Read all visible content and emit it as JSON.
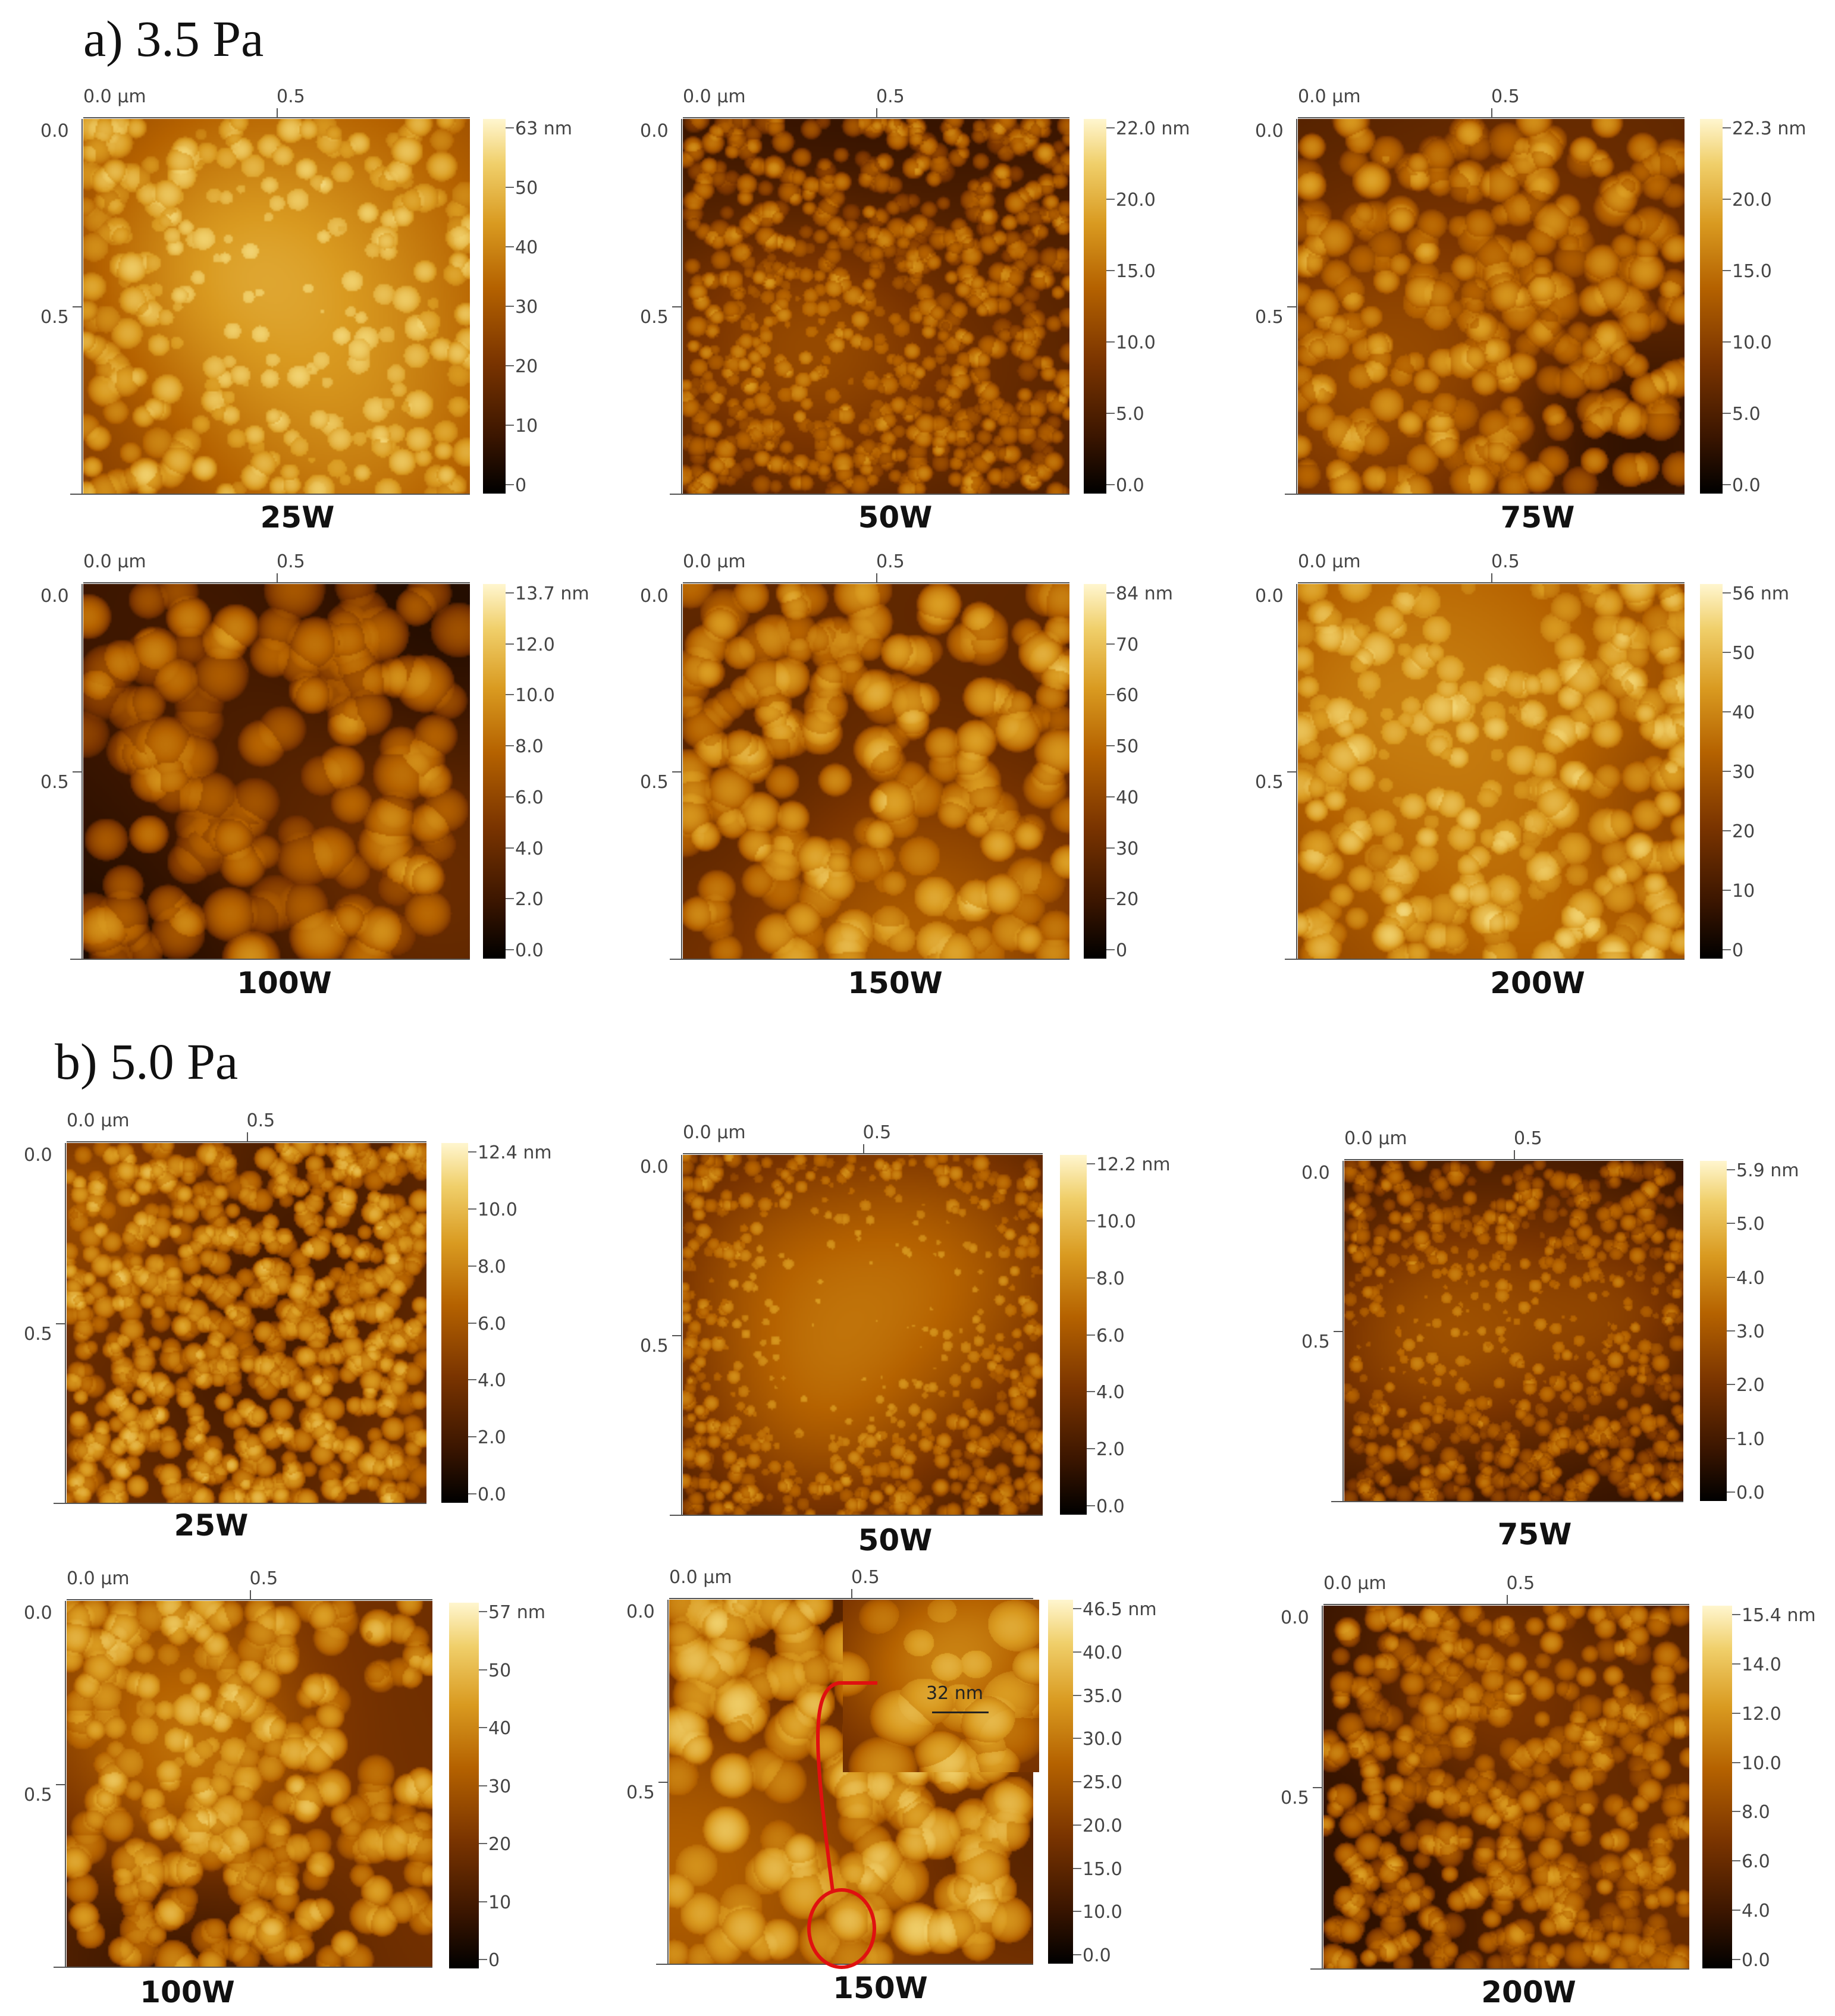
{
  "figure": {
    "colormap": [
      "#000000",
      "#3a1500",
      "#7a3400",
      "#b56200",
      "#d99a20",
      "#f0cf6a",
      "#fff6cf"
    ],
    "sections": [
      {
        "title": "a) 3.5 Pa",
        "panels": [
          {
            "caption": "25W",
            "x_ticks": [
              "0.0 µm",
              "0.5"
            ],
            "y_ticks": [
              "0.0",
              "0.5"
            ],
            "scale_labels": [
              "63 nm",
              "50",
              "40",
              "30",
              "20",
              "10",
              "0"
            ],
            "brightness": 0.62,
            "grain": 18
          },
          {
            "caption": "50W",
            "x_ticks": [
              "0.0 µm",
              "0.5"
            ],
            "y_ticks": [
              "0.0",
              "0.5"
            ],
            "scale_labels": [
              "22.0 nm",
              "20.0",
              "15.0",
              "10.0",
              "5.0",
              "0.0"
            ],
            "brightness": 0.42,
            "grain": 12
          },
          {
            "caption": "75W",
            "x_ticks": [
              "0.0 µm",
              "0.5"
            ],
            "y_ticks": [
              "0.0",
              "0.5"
            ],
            "scale_labels": [
              "22.3 nm",
              "20.0",
              "15.0",
              "10.0",
              "5.0",
              "0.0"
            ],
            "brightness": 0.5,
            "grain": 20
          },
          {
            "caption": "100W",
            "x_ticks": [
              "0.0 µm",
              "0.5"
            ],
            "y_ticks": [
              "0.0",
              "0.5"
            ],
            "scale_labels": [
              "13.7 nm",
              "12.0",
              "10.0",
              "8.0",
              "6.0",
              "4.0",
              "2.0",
              "0.0"
            ],
            "brightness": 0.45,
            "grain": 30
          },
          {
            "caption": "150W",
            "x_ticks": [
              "0.0 µm",
              "0.5"
            ],
            "y_ticks": [
              "0.0",
              "0.5"
            ],
            "scale_labels": [
              "84 nm",
              "70",
              "60",
              "50",
              "40",
              "30",
              "20",
              "0"
            ],
            "brightness": 0.55,
            "grain": 24
          },
          {
            "caption": "200W",
            "x_ticks": [
              "0.0 µm",
              "0.5"
            ],
            "y_ticks": [
              "0.0",
              "0.5"
            ],
            "scale_labels": [
              "56 nm",
              "50",
              "40",
              "30",
              "20",
              "10",
              "0"
            ],
            "brightness": 0.62,
            "grain": 20
          }
        ]
      },
      {
        "title": "b) 5.0 Pa",
        "panels": [
          {
            "caption": "25W",
            "x_ticks": [
              "0.0 µm",
              "0.5"
            ],
            "y_ticks": [
              "0.0",
              "0.5"
            ],
            "scale_labels": [
              "12.4 nm",
              "10.0",
              "8.0",
              "6.0",
              "4.0",
              "2.0",
              "0.0"
            ],
            "brightness": 0.55,
            "grain": 13
          },
          {
            "caption": "50W",
            "x_ticks": [
              "0.0 µm",
              "0.5"
            ],
            "y_ticks": [
              "0.0",
              "0.5"
            ],
            "scale_labels": [
              "12.2 nm",
              "10.0",
              "8.0",
              "6.0",
              "4.0",
              "2.0",
              "0.0"
            ],
            "brightness": 0.42,
            "grain": 11
          },
          {
            "caption": "75W",
            "x_ticks": [
              "0.0 µm",
              "0.5"
            ],
            "y_ticks": [
              "0.0",
              "0.5"
            ],
            "scale_labels": [
              "5.9 nm",
              "5.0",
              "4.0",
              "3.0",
              "2.0",
              "1.0",
              "0.0"
            ],
            "brightness": 0.38,
            "grain": 12
          },
          {
            "caption": "100W",
            "x_ticks": [
              "0.0 µm",
              "0.5"
            ],
            "y_ticks": [
              "0.0",
              "0.5"
            ],
            "scale_labels": [
              "57 nm",
              "50",
              "40",
              "30",
              "20",
              "10",
              "0"
            ],
            "brightness": 0.58,
            "grain": 20
          },
          {
            "caption": "150W",
            "x_ticks": [
              "0.0 µm",
              "0.5"
            ],
            "y_ticks": [
              "0.0",
              "0.5"
            ],
            "scale_labels": [
              "46.5 nm",
              "40.0",
              "35.0",
              "30.0",
              "25.0",
              "20.0",
              "15.0",
              "10.0",
              "0.0"
            ],
            "brightness": 0.62,
            "grain": 28,
            "inset_scale": "32 nm"
          },
          {
            "caption": "200W",
            "x_ticks": [
              "0.0 µm",
              "0.5"
            ],
            "y_ticks": [
              "0.0",
              "0.5"
            ],
            "scale_labels": [
              "15.4 nm",
              "14.0",
              "12.0",
              "10.0",
              "8.0",
              "6.0",
              "4.0",
              "0.0"
            ],
            "brightness": 0.45,
            "grain": 15
          }
        ]
      }
    ]
  }
}
